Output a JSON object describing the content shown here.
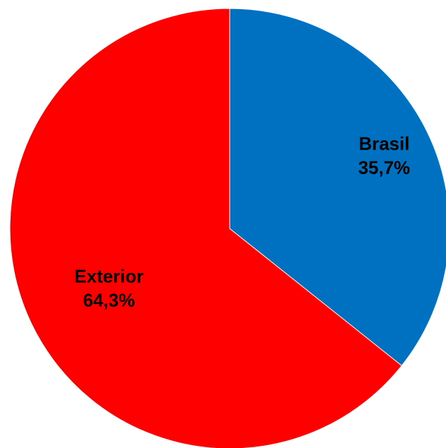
{
  "chart_data": {
    "type": "pie",
    "title": "",
    "slices": [
      {
        "label": "Brasil",
        "value": 35.7,
        "value_label": "35,7%",
        "color": "#0070C0"
      },
      {
        "label": "Exterior",
        "value": 64.3,
        "value_label": "64,3%",
        "color": "#FF0000"
      }
    ],
    "start_angle_deg": 0,
    "direction": "clockwise",
    "legend": "none",
    "data_labels": "inside"
  }
}
